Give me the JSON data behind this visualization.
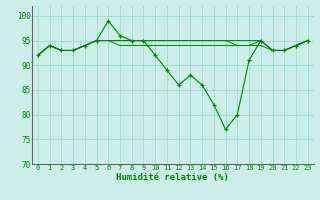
{
  "title": "",
  "xlabel": "Humidité relative (%)",
  "ylabel": "",
  "background_color": "#cceee8",
  "grid_color": "#99ddcc",
  "line_color": "#008800",
  "marker_color": "#008800",
  "xlim": [
    -0.5,
    23.5
  ],
  "ylim": [
    70,
    102
  ],
  "yticks": [
    70,
    75,
    80,
    85,
    90,
    95,
    100
  ],
  "xticks": [
    0,
    1,
    2,
    3,
    4,
    5,
    6,
    7,
    8,
    9,
    10,
    11,
    12,
    13,
    14,
    15,
    16,
    17,
    18,
    19,
    20,
    21,
    22,
    23
  ],
  "series_main": [
    92,
    94,
    93,
    93,
    94,
    95,
    99,
    96,
    95,
    95,
    92,
    89,
    86,
    88,
    86,
    82,
    77,
    80,
    91,
    95,
    93,
    93,
    94,
    95
  ],
  "series_flat": [
    [
      92,
      94,
      93,
      93,
      94,
      95,
      95,
      94,
      94,
      94,
      94,
      94,
      94,
      94,
      94,
      94,
      94,
      94,
      94,
      95,
      93,
      93,
      94,
      95
    ],
    [
      92,
      94,
      93,
      93,
      94,
      95,
      95,
      95,
      95,
      95,
      95,
      95,
      95,
      95,
      95,
      95,
      95,
      95,
      95,
      95,
      93,
      93,
      94,
      95
    ],
    [
      92,
      94,
      93,
      93,
      94,
      95,
      95,
      95,
      95,
      95,
      95,
      95,
      95,
      95,
      95,
      95,
      95,
      94,
      94,
      94,
      93,
      93,
      94,
      95
    ]
  ],
  "xlabel_fontsize": 6.5,
  "tick_fontsize": 5.0,
  "ytick_fontsize": 5.5
}
